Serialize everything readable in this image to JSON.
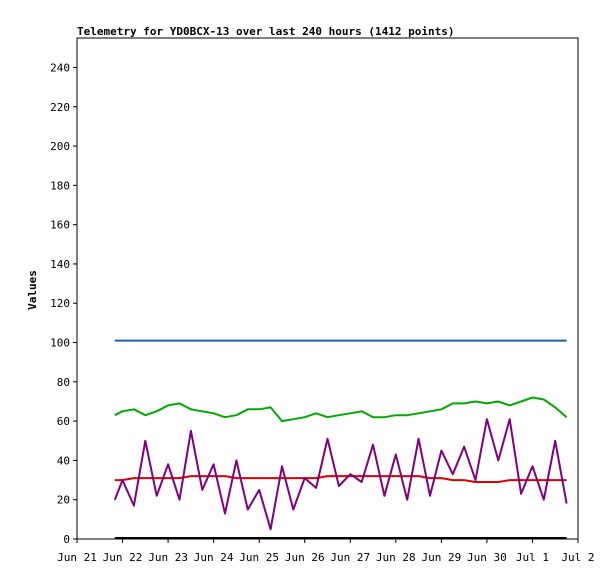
{
  "chart_data": {
    "type": "line",
    "title": "Telemetry for YD0BCX-13 over last 240 hours (1412 points)",
    "xlabel": "",
    "ylabel": "Values",
    "xlim": [
      "Jun 21",
      "Jul 2"
    ],
    "ylim": [
      0,
      255
    ],
    "x_tick_labels": [
      "Jun 21",
      "Jun 22",
      "Jun 23",
      "Jun 24",
      "Jun 25",
      "Jun 26",
      "Jun 27",
      "Jun 28",
      "Jun 29",
      "Jun 30",
      "Jul 1",
      "Jul 2"
    ],
    "y_ticks": [
      0,
      20,
      40,
      60,
      80,
      100,
      120,
      140,
      160,
      180,
      200,
      220,
      240
    ],
    "grid": false,
    "legend": "none",
    "x_days": [
      0.83,
      1.0,
      1.25,
      1.5,
      1.75,
      2.0,
      2.25,
      2.5,
      2.75,
      3.0,
      3.25,
      3.5,
      3.75,
      4.0,
      4.25,
      4.5,
      4.75,
      5.0,
      5.25,
      5.5,
      5.75,
      6.0,
      6.25,
      6.5,
      6.75,
      7.0,
      7.25,
      7.5,
      7.75,
      8.0,
      8.25,
      8.5,
      8.75,
      9.0,
      9.25,
      9.5,
      9.75,
      10.0,
      10.25,
      10.5,
      10.75
    ],
    "series": [
      {
        "color": "#1f5fa8",
        "values": [
          101,
          101,
          101,
          101,
          101,
          101,
          101,
          101,
          101,
          101,
          101,
          101,
          101,
          101,
          101,
          101,
          101,
          101,
          101,
          101,
          101,
          101,
          101,
          101,
          101,
          101,
          101,
          101,
          101,
          101,
          101,
          101,
          101,
          101,
          101,
          101,
          101,
          101,
          101,
          101,
          101
        ]
      },
      {
        "color": "#00aa00",
        "values": [
          63,
          65,
          66,
          63,
          65,
          68,
          69,
          66,
          65,
          64,
          62,
          63,
          66,
          66,
          67,
          60,
          61,
          62,
          64,
          62,
          63,
          64,
          65,
          62,
          62,
          63,
          63,
          64,
          65,
          66,
          69,
          69,
          70,
          69,
          70,
          68,
          70,
          72,
          71,
          67,
          62
        ]
      },
      {
        "color": "#dd0000",
        "values": [
          30,
          30,
          31,
          31,
          31,
          31,
          31,
          32,
          32,
          32,
          32,
          31,
          31,
          31,
          31,
          31,
          31,
          31,
          31,
          32,
          32,
          32,
          32,
          32,
          32,
          32,
          32,
          32,
          31,
          31,
          30,
          30,
          29,
          29,
          29,
          30,
          30,
          30,
          30,
          30,
          30
        ]
      },
      {
        "color": "#800080",
        "values": [
          20,
          30,
          17,
          50,
          22,
          38,
          20,
          55,
          25,
          38,
          13,
          40,
          15,
          25,
          5,
          37,
          15,
          31,
          26,
          51,
          27,
          33,
          29,
          48,
          22,
          43,
          20,
          51,
          22,
          45,
          33,
          47,
          30,
          61,
          40,
          61,
          23,
          37,
          20,
          50,
          18
        ]
      },
      {
        "color": "#000000",
        "values": [
          0.5,
          0.5,
          0.5,
          0.5,
          0.5,
          0.5,
          0.5,
          0.5,
          0.5,
          0.5,
          0.5,
          0.5,
          0.5,
          0.5,
          0.5,
          0.5,
          0.5,
          0.5,
          0.5,
          0.5,
          0.5,
          0.5,
          0.5,
          0.5,
          0.5,
          0.5,
          0.5,
          0.5,
          0.5,
          0.5,
          0.5,
          0.5,
          0.5,
          0.5,
          0.5,
          0.5,
          0.5,
          0.5,
          0.5,
          0.5,
          0.5
        ]
      }
    ]
  }
}
